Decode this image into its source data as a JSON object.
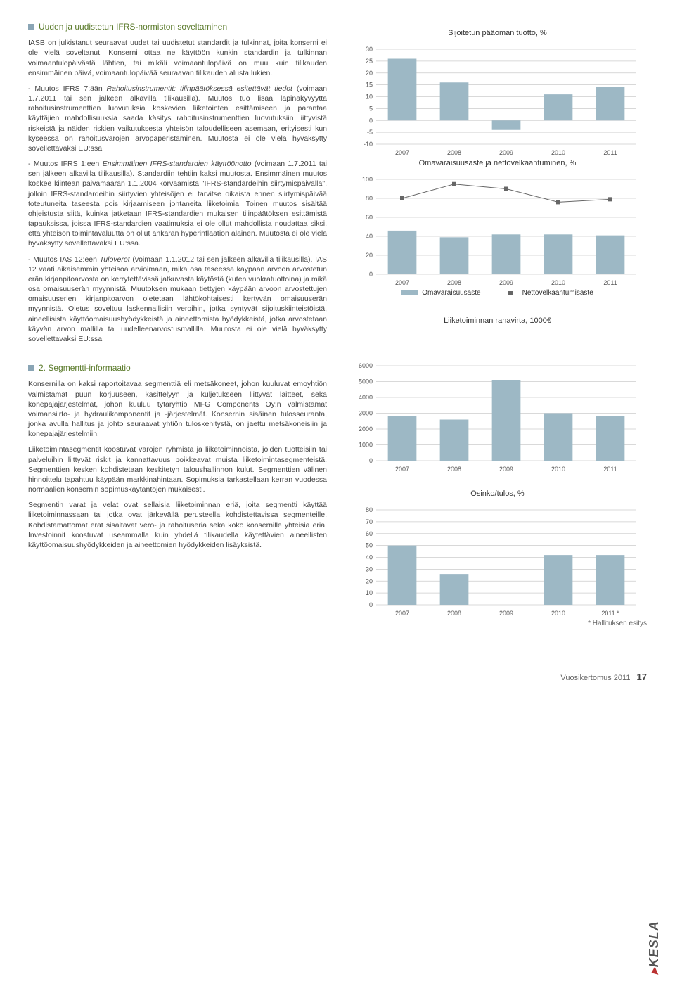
{
  "headings": {
    "h1": "Uuden ja uudistetun IFRS-normiston soveltaminen",
    "h2": "2. Segmentti-informaatio"
  },
  "para": {
    "p1": "IASB on julkistanut seuraavat uudet tai uudistetut standardit ja tulkinnat, joita konserni ei ole vielä soveltanut. Konserni ottaa ne käyttöön kunkin standardin ja tulkinnan voimaantulopäivästä lähtien, tai mikäli voimaantulopäivä on muu kuin tilikauden ensimmäinen päivä, voimaantulopäivää seuraavan tilikauden alusta lukien.",
    "p2a": "- Muutos IFRS 7:ään ",
    "p2i": "Rahoitusinstrumentit: tilinpäätöksessä esitettävät tiedot",
    "p2b": " (voimaan 1.7.2011 tai sen jälkeen alkavilla tilikausilla). Muutos tuo lisää läpinäkyvyyttä rahoitusinstrumenttien luovutuksia koskevien liiketointen esittämiseen ja parantaa käyttäjien mahdollisuuksia saada käsitys rahoitusinstrumenttien luovutuksiin liittyvistä riskeistä ja näiden riskien vaikutuksesta yhteisön taloudelliseen asemaan, erityisesti kun kyseessä on rahoitusvarojen arvopaperistaminen. Muutosta ei ole vielä hyväksytty sovellettavaksi EU:ssa.",
    "p3a": "- Muutos IFRS 1:een ",
    "p3i": "Ensimmäinen IFRS-standardien käyttöönotto",
    "p3b": " (voimaan 1.7.2011 tai sen jälkeen alkavilla tilikausilla). Standardiin tehtiin kaksi muutosta. Ensimmäinen muutos koskee kiinteän päivämäärän 1.1.2004 korvaamista \"IFRS-standardeihin siirtymispäivällä\", jolloin IFRS-standardeihin siirtyvien yhteisöjen ei tarvitse oikaista ennen siirtymispäivää toteutuneita taseesta pois kirjaamiseen johtaneita liiketoimia. Toinen muutos sisältää ohjeistusta siitä, kuinka jatketaan IFRS-standardien mukaisen tilinpäätöksen esittämistä tapauksissa, joissa IFRS-standardien vaatimuksia ei ole ollut mahdollista noudattaa siksi, että yhteisön toimintavaluutta on ollut ankaran hyperinflaation alainen. Muutosta ei ole vielä hyväksytty sovellettavaksi EU:ssa.",
    "p4a": "- Muutos IAS 12:een ",
    "p4i": "Tuloverot",
    "p4b": " (voimaan 1.1.2012 tai sen jälkeen alkavilla tilikausilla). IAS 12 vaati aikaisemmin yhteisöä arvioimaan, mikä osa taseessa käypään arvoon arvostetun erän kirjanpitoarvosta on kerrytettävissä jatkuvasta käytöstä (kuten vuokratuottoina) ja mikä osa omaisuuserän myynnistä. Muutoksen mukaan tiettyjen käypään arvoon arvostettujen omaisuuserien kirjanpitoarvon oletetaan lähtökohtaisesti kertyvän omaisuuserän myynnistä. Oletus soveltuu laskennallisiin veroihin, jotka syntyvät sijoituskiinteistöistä, aineellisista käyttöomaisuushyödykkeistä ja aineettomista hyödykkeistä, jotka arvostetaan käyvän arvon mallilla tai uudelleenarvostusmallilla. Muutosta ei ole vielä hyväksytty sovellettavaksi EU:ssa.",
    "p5": "Konsernilla on kaksi raportoitavaa segmenttiä eli metsäkoneet, johon kuuluvat emoyhtiön valmistamat puun korjuuseen, käsittelyyn ja kuljetukseen liittyvät laitteet, sekä konepajajärjestelmät, johon kuuluu tytäryhtiö MFG Components Oy:n valmistamat voimansiirto- ja hydraulikomponentit ja -järjestelmät. Konsernin sisäinen tulosseuranta, jonka avulla hallitus ja johto seuraavat yhtiön tuloskehitystä, on jaettu metsäkoneisiin ja konepajajärjestelmiin.",
    "p6": "Liiketoimintasegmentit koostuvat varojen ryhmistä ja liiketoiminnoista, joiden tuotteisiin tai palveluihin liittyvät riskit ja kannattavuus poikkeavat muista liiketoimintasegmenteistä. Segmenttien kesken kohdistetaan keskitetyn taloushallinnon kulut. Segmenttien välinen hinnoittelu tapahtuu käypään markkinahintaan. Sopimuksia tarkastellaan kerran vuodessa normaalien konsernin sopimuskäytäntöjen mukaisesti.",
    "p7": "Segmentin varat ja velat ovat sellaisia liiketoiminnan eriä, joita segmentti käyttää liiketoiminnassaan tai jotka ovat järkevällä perusteella kohdistettavissa segmenteille. Kohdistamattomat erät sisältävät vero- ja rahoituseriä sekä koko konsernille yhteisiä eriä. Investoinnit koostuvat useammalla kuin yhdellä tilikaudella käytettävien aineellisten käyttöomaisuushyödykkeiden ja aineettomien hyödykkeiden lisäyksistä."
  },
  "chart1": {
    "title": "Sijoitetun pääoman tuotto, %",
    "ylim": [
      -10,
      30
    ],
    "ytick_step": 5,
    "categories": [
      "2007",
      "2008",
      "2009",
      "2010",
      "2011"
    ],
    "values": [
      26,
      16,
      -4,
      11,
      14
    ],
    "bar_color": "#9db8c5",
    "grid_color": "#cccccc",
    "axis_color": "#888888",
    "label_fontsize": 10
  },
  "chart2": {
    "title": "Omavaraisuusaste ja nettovelkaantuminen, %",
    "ylim": [
      0,
      100
    ],
    "ytick_step": 20,
    "categories": [
      "2007",
      "2008",
      "2009",
      "2010",
      "2011"
    ],
    "bar_values": [
      46,
      39,
      42,
      42,
      41
    ],
    "line_values": [
      80,
      95,
      90,
      76,
      79
    ],
    "bar_color": "#9db8c5",
    "line_color": "#666666",
    "marker": "square",
    "grid_color": "#cccccc",
    "legend": {
      "bar": "Omavaraisuusaste",
      "line": "Nettovelkaantumisaste"
    }
  },
  "chart3": {
    "title": "Liiketoiminnan rahavirta, 1000€",
    "ylim": [
      0,
      6000
    ],
    "ytick_step": 1000,
    "categories": [
      "2007",
      "2008",
      "2009",
      "2010",
      "2011"
    ],
    "values": [
      2800,
      2600,
      5100,
      3000,
      2800
    ],
    "bar_color": "#9db8c5",
    "grid_color": "#cccccc"
  },
  "chart4": {
    "title": "Osinko/tulos, %",
    "ylim": [
      0,
      80
    ],
    "ytick_step": 10,
    "categories": [
      "2007",
      "2008",
      "2009",
      "2010",
      "2011 *"
    ],
    "values": [
      50,
      26,
      0,
      42,
      42
    ],
    "bar_color": "#9db8c5",
    "grid_color": "#cccccc",
    "footnote": "* Hallituksen esitys"
  },
  "footer": {
    "ref": "Vuosikertomus 2011",
    "page": "17",
    "logo_text": "KESLA"
  }
}
